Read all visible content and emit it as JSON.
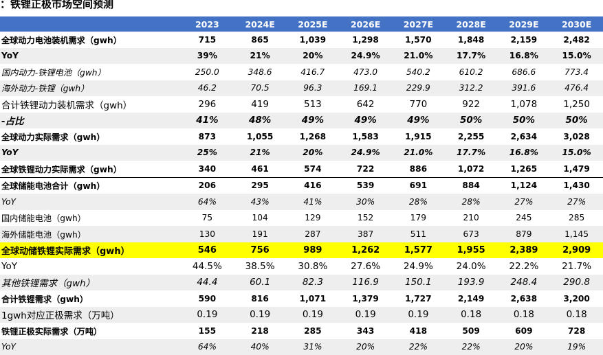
{
  "title": "：铁锂正极市场空间预测",
  "headers": [
    "",
    "2023",
    "2024E",
    "2025E",
    "2026E",
    "2027E",
    "2028E",
    "2029E",
    "2030E"
  ],
  "rows": [
    {
      "label": "全球动力电池装机需求（gwh）",
      "values": [
        "715",
        "865",
        "1,039",
        "1,298",
        "1,570",
        "1,848",
        "2,159",
        "2,482"
      ]
    },
    {
      "label": "YoY",
      "values": [
        "39%",
        "21%",
        "20%",
        "24.9%",
        "21.0%",
        "17.7%",
        "16.8%",
        "15.0%"
      ]
    },
    {
      "label": "国内动力-铁锂电池（gwh）",
      "values": [
        "250.0",
        "348.6",
        "416.7",
        "473.0",
        "540.2",
        "610.2",
        "686.6",
        "773.4"
      ]
    },
    {
      "label": "海外动力-铁锂（gwh）",
      "values": [
        "46.2",
        "70.5",
        "96.3",
        "169.1",
        "229.9",
        "312.2",
        "391.6",
        "476.4"
      ]
    },
    {
      "label": "合计铁锂动力装机需求（gwh）",
      "values": [
        "296",
        "419",
        "513",
        "642",
        "770",
        "922",
        "1,078",
        "1,250"
      ]
    },
    {
      "label": "-占比",
      "values": [
        "41%",
        "48%",
        "49%",
        "49%",
        "49%",
        "50%",
        "50%",
        "50%"
      ]
    },
    {
      "label": "全球动力实际需求（gwh）",
      "values": [
        "873",
        "1,055",
        "1,268",
        "1,583",
        "1,915",
        "2,255",
        "2,634",
        "3,028"
      ]
    },
    {
      "label": "YoY",
      "values": [
        "25%",
        "21%",
        "20%",
        "24.9%",
        "21.0%",
        "17.7%",
        "16.8%",
        "15.0%"
      ]
    },
    {
      "label": "全球铁锂动力实际需求（gwh）",
      "values": [
        "340",
        "461",
        "574",
        "722",
        "886",
        "1,072",
        "1,265",
        "1,479"
      ]
    },
    {
      "label": "全球储能电池合计（gwh）",
      "values": [
        "206",
        "295",
        "416",
        "539",
        "691",
        "884",
        "1,124",
        "1,430"
      ]
    },
    {
      "label": "YoY",
      "values": [
        "64%",
        "43%",
        "41%",
        "30%",
        "28%",
        "28%",
        "27%",
        "27%"
      ]
    },
    {
      "label": "国内储能电池（gwh）",
      "values": [
        "75",
        "104",
        "129",
        "152",
        "179",
        "210",
        "245",
        "285"
      ]
    },
    {
      "label": "海外储能电池（gwh）",
      "values": [
        "130",
        "191",
        "287",
        "387",
        "511",
        "673",
        "879",
        "1,145"
      ]
    },
    {
      "label": "全球动储铁锂实际需求（gwh）",
      "values": [
        "546",
        "756",
        "989",
        "1,262",
        "1,577",
        "1,955",
        "2,389",
        "2,909"
      ]
    },
    {
      "label": "YoY",
      "values": [
        "44.5%",
        "38.5%",
        "30.8%",
        "27.6%",
        "24.9%",
        "24.0%",
        "22.2%",
        "21.7%"
      ]
    },
    {
      "label": "其他铁锂需求（gwh）",
      "values": [
        "44.4",
        "60.1",
        "82.3",
        "116.9",
        "150.1",
        "193.9",
        "248.4",
        "290.8"
      ]
    },
    {
      "label": "合计铁锂需求（gwh）",
      "values": [
        "590",
        "816",
        "1,071",
        "1,379",
        "1,727",
        "2,149",
        "2,638",
        "3,200"
      ]
    },
    {
      "label": "1gwh对应正极需求（万吨）",
      "values": [
        "0.19",
        "0.19",
        "0.19",
        "0.19",
        "0.19",
        "0.18",
        "0.18",
        "0.18"
      ]
    },
    {
      "label": "铁锂正极实际需求（万吨）",
      "values": [
        "155",
        "218",
        "285",
        "343",
        "418",
        "509",
        "609",
        "728"
      ]
    },
    {
      "label": "YoY",
      "values": [
        "64%",
        "40%",
        "31%",
        "20%",
        "22%",
        "22%",
        "20%",
        "19%"
      ]
    }
  ]
}
